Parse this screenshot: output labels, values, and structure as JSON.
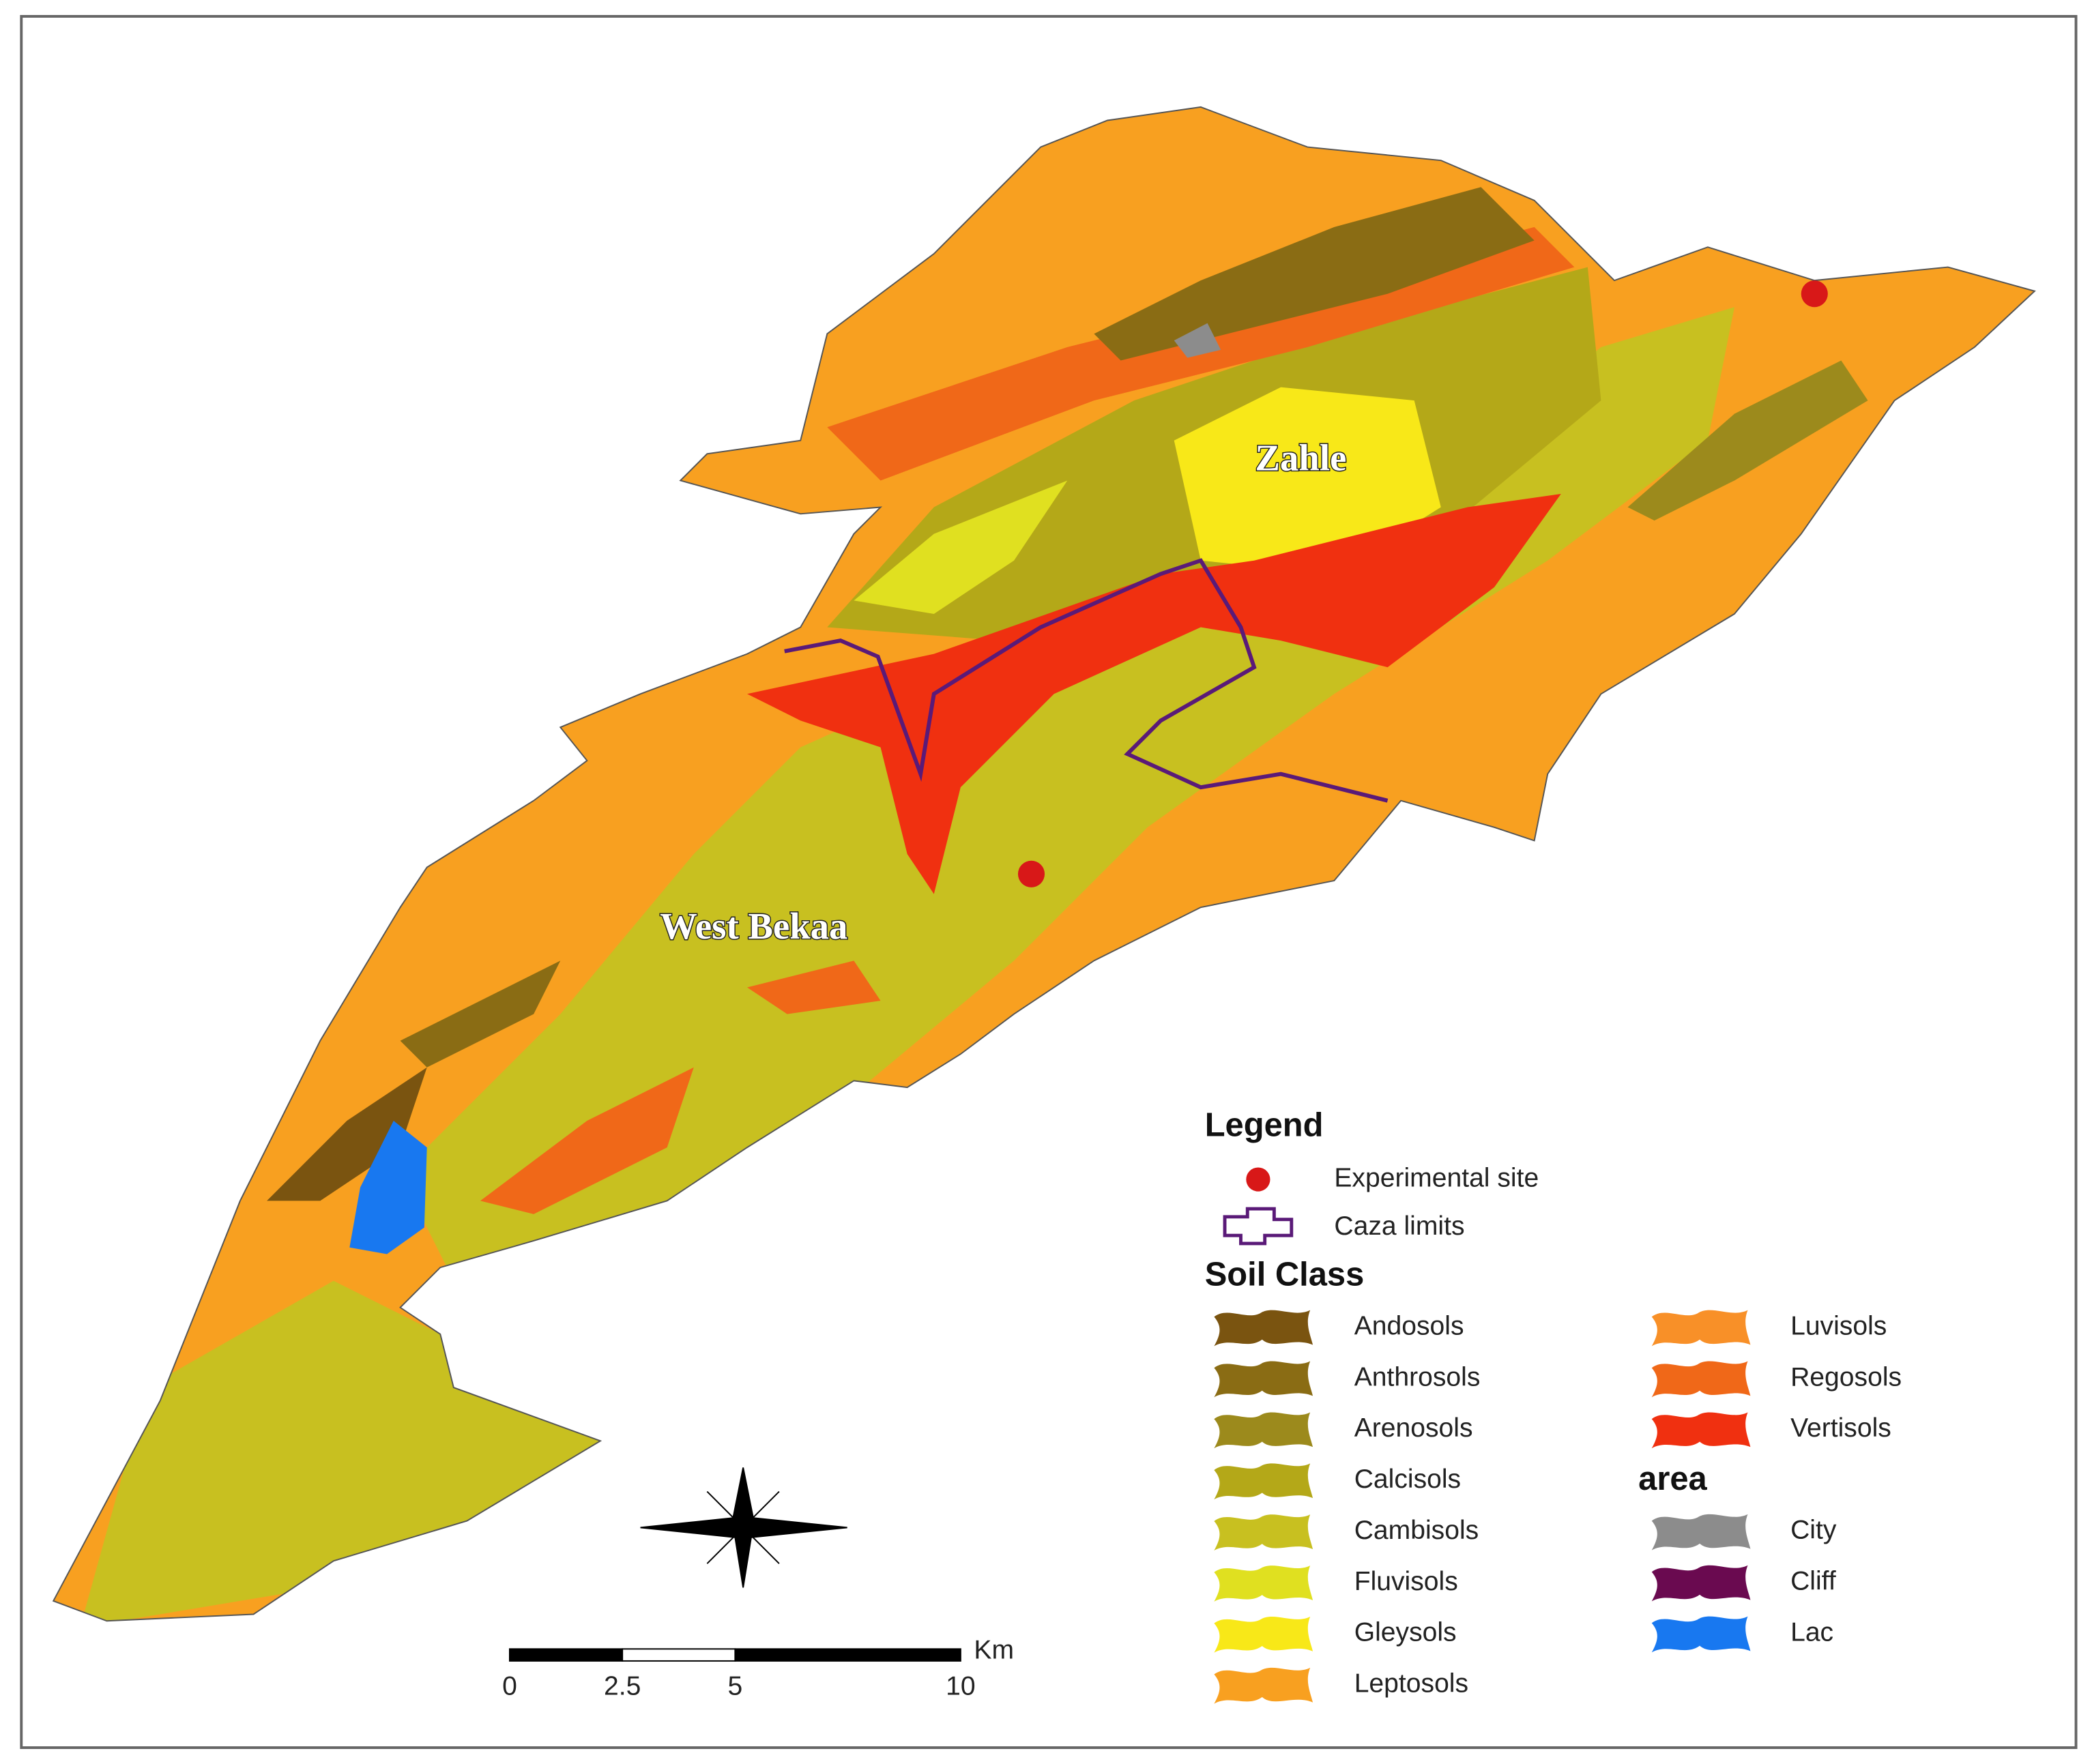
{
  "map": {
    "place_labels": [
      "Zahle",
      "West Bekaa"
    ]
  },
  "legend": {
    "title": "Legend",
    "symbols": [
      {
        "label": "Experimental site",
        "color": "#d81818"
      },
      {
        "label": "Caza limits",
        "color": "#5a1a78"
      }
    ],
    "soil_title": "Soil Class",
    "soil_classes": [
      {
        "name": "Andosols",
        "color": "#7a5410"
      },
      {
        "name": "Anthrosols",
        "color": "#8a6c14"
      },
      {
        "name": "Arenosols",
        "color": "#9c8a1c"
      },
      {
        "name": "Calcisols",
        "color": "#b4a818"
      },
      {
        "name": "Cambisols",
        "color": "#c8c020"
      },
      {
        "name": "Fluvisols",
        "color": "#e0e020"
      },
      {
        "name": "Gleysols",
        "color": "#f8e818"
      },
      {
        "name": "Leptosols",
        "color": "#f8a020"
      },
      {
        "name": "Luvisols",
        "color": "#f89028"
      },
      {
        "name": "Regosols",
        "color": "#f06818"
      },
      {
        "name": "Vertisols",
        "color": "#f03010"
      }
    ],
    "area_title": "area",
    "area_classes": [
      {
        "name": "City",
        "color": "#8c8c8c"
      },
      {
        "name": "Cliff",
        "color": "#6a0a50"
      },
      {
        "name": "Lac",
        "color": "#1878f0"
      }
    ]
  },
  "scale_bar": {
    "unit": "Km",
    "ticks": [
      0,
      2.5,
      5,
      10
    ]
  }
}
